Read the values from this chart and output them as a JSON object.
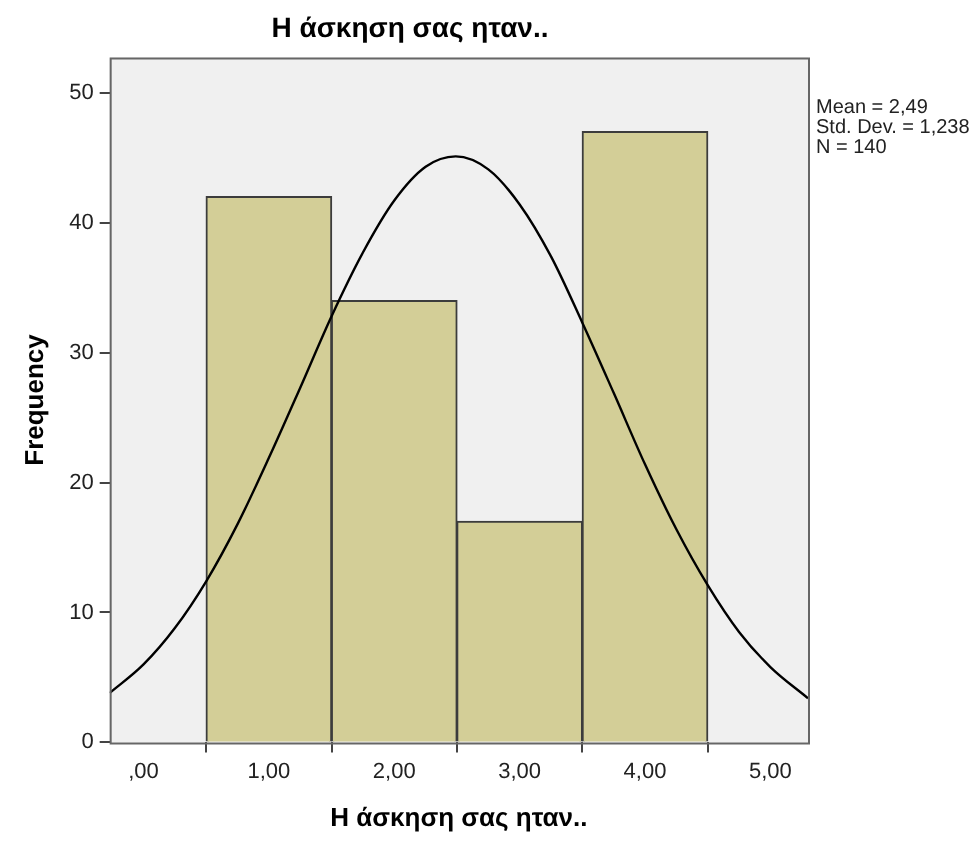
{
  "chart_data": {
    "type": "histogram",
    "title": "Η άσκηση σας ηταν..",
    "xlabel": "Η άσκηση σας ηταν..",
    "ylabel": "Frequency",
    "bins": [
      0.5,
      1.5,
      2.5,
      3.5,
      4.5
    ],
    "values": [
      42,
      34,
      17,
      47
    ],
    "color": "#d3ce97",
    "series": [
      {
        "type": "line",
        "color": "#000000",
        "x": [
          -0.27,
          0,
          0.25,
          0.5,
          0.75,
          1,
          1.25,
          1.5,
          1.75,
          2,
          2.25,
          2.49,
          2.75,
          3,
          3.25,
          3.5,
          3.75,
          4,
          4.25,
          4.5,
          4.75,
          5,
          5.3
        ],
        "values": [
          3.8,
          6.0,
          8.8,
          12.4,
          16.8,
          21.9,
          27.3,
          32.8,
          37.7,
          41.7,
          44.3,
          45.1,
          44.1,
          41.4,
          37.4,
          32.3,
          26.9,
          21.4,
          16.4,
          12.1,
          8.5,
          5.8,
          3.4
        ]
      }
    ],
    "marker": "none",
    "xlim": [
      -0.27,
      5.3
    ],
    "xticks": [
      {
        "value": 0,
        "label": ",00"
      },
      {
        "value": 1,
        "label": "1,00"
      },
      {
        "value": 2,
        "label": "2,00"
      },
      {
        "value": 3,
        "label": "3,00"
      },
      {
        "value": 4,
        "label": "4,00"
      },
      {
        "value": 5,
        "label": "5,00"
      }
    ],
    "ylim": [
      0,
      52.7
    ],
    "yticks": [
      0,
      10,
      20,
      30,
      40,
      50
    ],
    "annotations": [
      "Mean = 2,49",
      "Std. Dev. = 1,238",
      "N = 140"
    ]
  }
}
